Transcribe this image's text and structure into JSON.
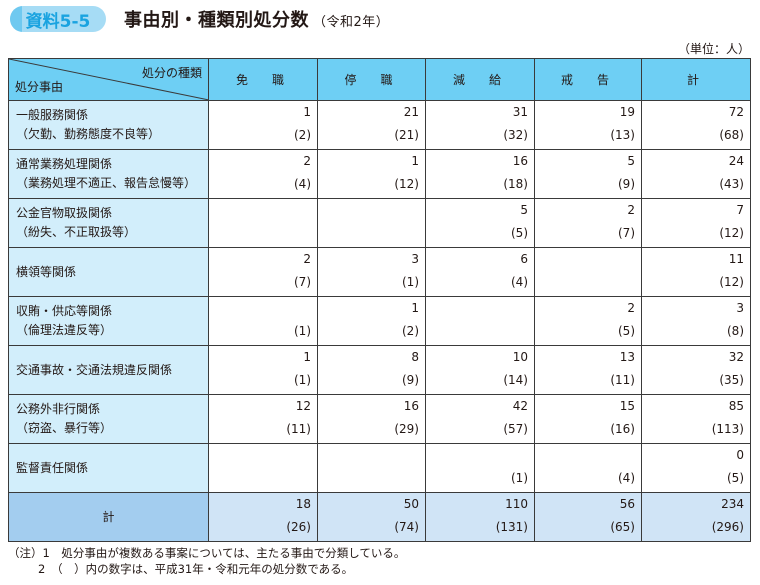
{
  "header": {
    "badge": "資料5-5",
    "title": "事由別・種類別処分数",
    "subtitle": "（令和2年）",
    "unit": "（単位：人）"
  },
  "table": {
    "corner_top": "処分の種類",
    "corner_bottom": "処分事由",
    "columns": [
      "免　職",
      "停　職",
      "減　給",
      "戒　告",
      "計"
    ],
    "rows": [
      {
        "label1": "一般服務関係",
        "label2": "（欠勤、勤務態度不良等）",
        "cells": [
          [
            "1",
            "(2)"
          ],
          [
            "21",
            "(21)"
          ],
          [
            "31",
            "(32)"
          ],
          [
            "19",
            "(13)"
          ],
          [
            "72",
            "(68)"
          ]
        ]
      },
      {
        "label1": "通常業務処理関係",
        "label2": "（業務処理不適正、報告怠慢等）",
        "cells": [
          [
            "2",
            "(4)"
          ],
          [
            "1",
            "(12)"
          ],
          [
            "16",
            "(18)"
          ],
          [
            "5",
            "(9)"
          ],
          [
            "24",
            "(43)"
          ]
        ]
      },
      {
        "label1": "公金官物取扱関係",
        "label2": "（紛失、不正取扱等）",
        "cells": [
          [
            "",
            ""
          ],
          [
            "",
            ""
          ],
          [
            "5",
            "(5)"
          ],
          [
            "2",
            "(7)"
          ],
          [
            "7",
            "(12)"
          ]
        ]
      },
      {
        "label1": "横領等関係",
        "label2": "",
        "cells": [
          [
            "2",
            "(7)"
          ],
          [
            "3",
            "(1)"
          ],
          [
            "6",
            "(4)"
          ],
          [
            "",
            ""
          ],
          [
            "11",
            "(12)"
          ]
        ]
      },
      {
        "label1": "収賄・供応等関係",
        "label2": "（倫理法違反等）",
        "cells": [
          [
            "",
            "(1)"
          ],
          [
            "1",
            "(2)"
          ],
          [
            "",
            ""
          ],
          [
            "2",
            "(5)"
          ],
          [
            "3",
            "(8)"
          ]
        ]
      },
      {
        "label1": "交通事故・交通法規違反関係",
        "label2": "",
        "cells": [
          [
            "1",
            "(1)"
          ],
          [
            "8",
            "(9)"
          ],
          [
            "10",
            "(14)"
          ],
          [
            "13",
            "(11)"
          ],
          [
            "32",
            "(35)"
          ]
        ]
      },
      {
        "label1": "公務外非行関係",
        "label2": "（窃盗、暴行等）",
        "cells": [
          [
            "12",
            "(11)"
          ],
          [
            "16",
            "(29)"
          ],
          [
            "42",
            "(57)"
          ],
          [
            "15",
            "(16)"
          ],
          [
            "85",
            "(113)"
          ]
        ]
      },
      {
        "label1": "監督責任関係",
        "label2": "",
        "cells": [
          [
            "",
            ""
          ],
          [
            "",
            ""
          ],
          [
            "",
            "(1)"
          ],
          [
            "",
            "(4)"
          ],
          [
            "0",
            "(5)"
          ]
        ]
      }
    ],
    "total": {
      "label": "計",
      "cells": [
        [
          "18",
          "(26)"
        ],
        [
          "50",
          "(74)"
        ],
        [
          "110",
          "(131)"
        ],
        [
          "56",
          "(65)"
        ],
        [
          "234",
          "(296)"
        ]
      ]
    }
  },
  "notes": {
    "note1": "（注）1　処分事由が複数ある事案については、主たる事由で分類している。",
    "note2": "2　（　）内の数字は、平成31年・令和元年の処分数である。"
  },
  "colors": {
    "header_bg": "#6ecff4",
    "reason_bg": "#d2eefb",
    "total_label_bg": "#a3cdef",
    "total_bg": "#d0e4f6",
    "badge_text": "#1aa3e0"
  }
}
